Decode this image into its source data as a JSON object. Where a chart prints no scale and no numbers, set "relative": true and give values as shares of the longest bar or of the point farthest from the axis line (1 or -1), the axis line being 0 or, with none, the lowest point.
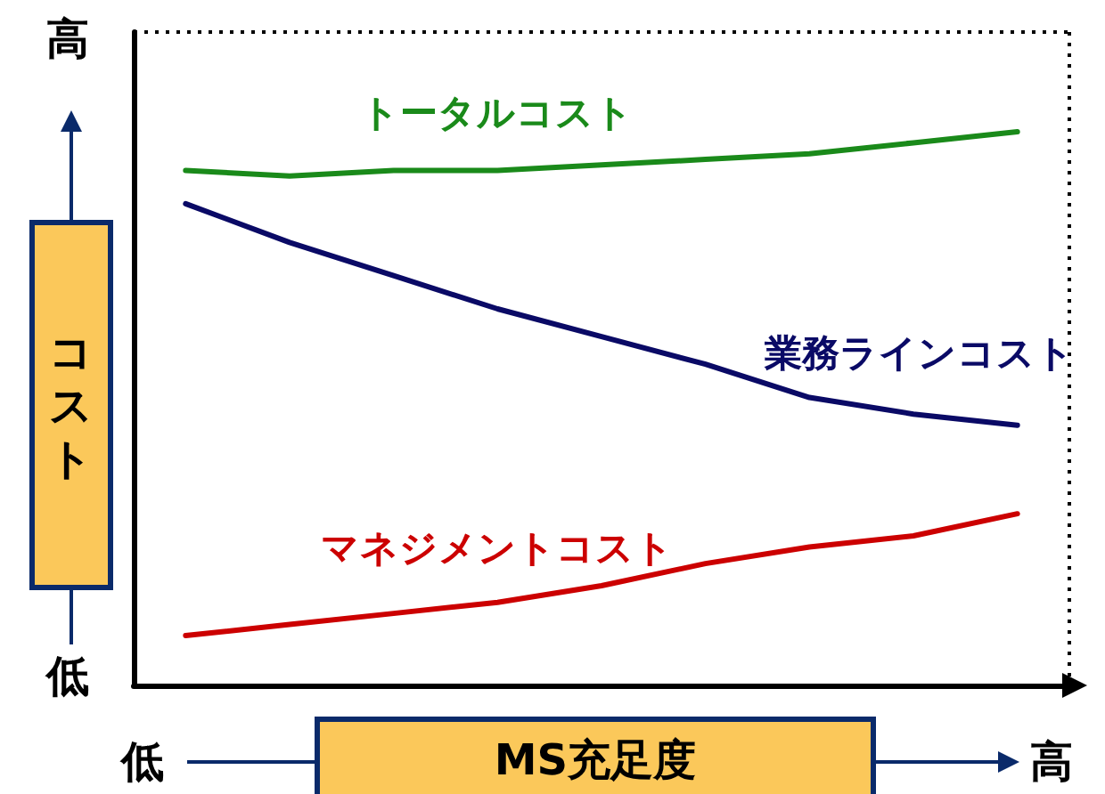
{
  "chart_data": {
    "type": "line",
    "relative": true,
    "xlabel": "MS充足度",
    "ylabel": "コスト",
    "categories": [
      null,
      null,
      null,
      null,
      null,
      null,
      null,
      null,
      null
    ],
    "series": [
      {
        "name": "トータルコスト",
        "color": "#1a8a1a",
        "values": [
          0.93,
          0.92,
          0.93,
          0.93,
          0.94,
          0.95,
          0.96,
          0.98,
          1
        ]
      },
      {
        "name": "業務ラインコスト",
        "color": "#0a0a66",
        "values": [
          0.87,
          0.8,
          0.74,
          0.68,
          0.63,
          0.58,
          0.52,
          0.49,
          0.47
        ]
      },
      {
        "name": "マネジメントコスト",
        "color": "#cc0000",
        "values": [
          0.09,
          0.11,
          0.13,
          0.15,
          0.18,
          0.22,
          0.25,
          0.27,
          0.31
        ]
      }
    ],
    "annotations": [
      "高",
      "低",
      "低",
      "高"
    ],
    "legend": false,
    "grid": false,
    "marker": "none",
    "line_style": "solid"
  }
}
